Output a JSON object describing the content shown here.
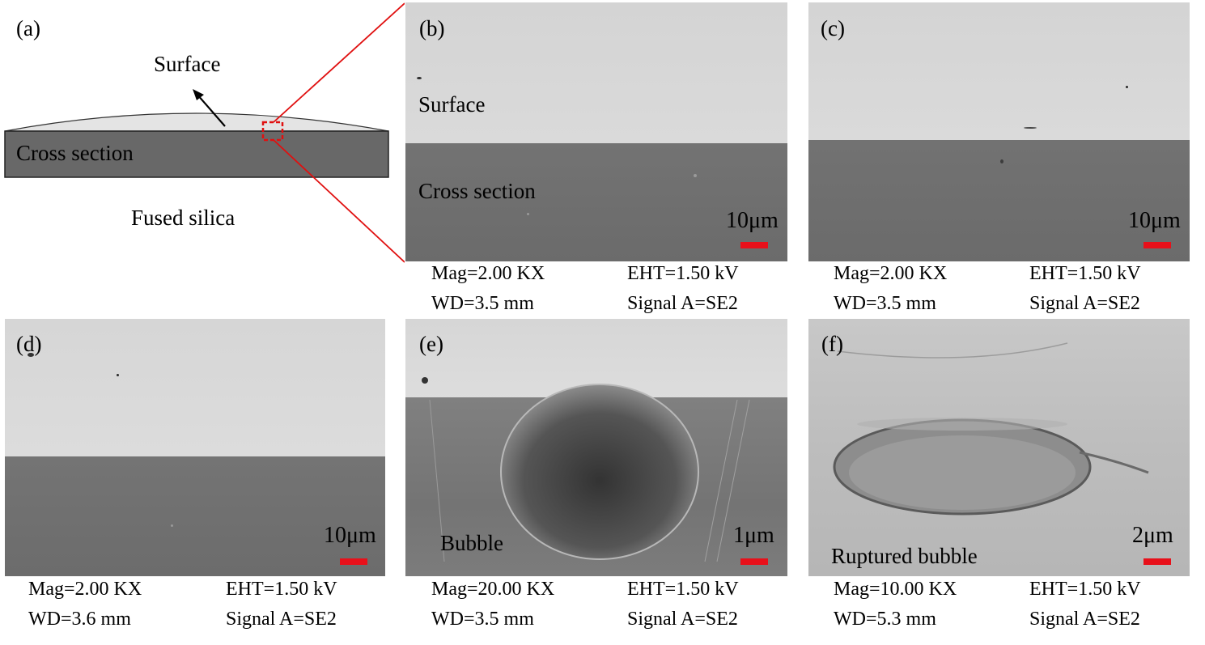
{
  "panel_a": {
    "label": "(a)",
    "surface_label": "Surface",
    "cross_section_label": "Cross section",
    "material_label": "Fused silica"
  },
  "panel_b": {
    "label": "(b)",
    "surface_label": "Surface",
    "cross_section_label": "Cross section",
    "scale": "10μm",
    "mag": "Mag=2.00  KX",
    "eht": "EHT=1.50 kV",
    "wd": "WD=3.5 mm",
    "signal": "Signal A=SE2"
  },
  "panel_c": {
    "label": "(c)",
    "scale": "10μm",
    "mag": "Mag=2.00  KX",
    "eht": "EHT=1.50 kV",
    "wd": "WD=3.5 mm",
    "signal": "Signal A=SE2"
  },
  "panel_d": {
    "label": "(d)",
    "scale": "10μm",
    "mag": "Mag=2.00  KX",
    "eht": "EHT=1.50 kV",
    "wd": "WD=3.6 mm",
    "signal": "Signal A=SE2"
  },
  "panel_e": {
    "label": "(e)",
    "feature_label": "Bubble",
    "scale": "1μm",
    "mag": "Mag=20.00  KX",
    "eht": "EHT=1.50 kV",
    "wd": "WD=3.5 mm",
    "signal": "Signal A=SE2"
  },
  "panel_f": {
    "label": "(f)",
    "feature_label": "Ruptured bubble",
    "scale": "2μm",
    "mag": "Mag=10.00  KX",
    "eht": "EHT=1.50 kV",
    "wd": "WD=5.3 mm",
    "signal": "Signal A=SE2"
  },
  "colors": {
    "surface": "#d6d6d6",
    "cross_section": "#6f6f6f",
    "scale_bar": "#e8101a",
    "zoom_lines": "#e01010"
  }
}
